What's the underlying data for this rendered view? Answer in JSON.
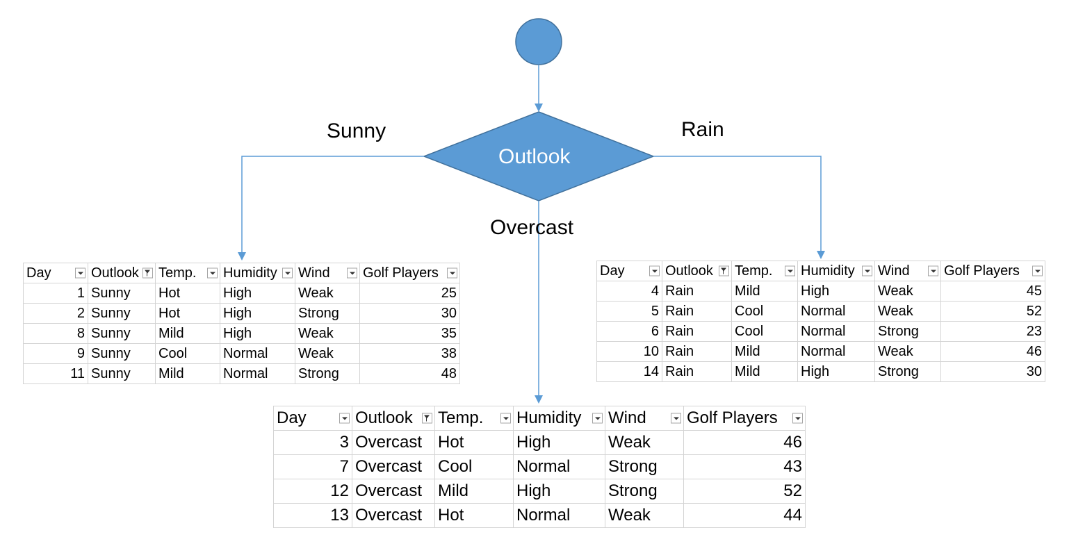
{
  "diagram": {
    "root_node": "",
    "decision_node": "Outlook",
    "branches": {
      "left": "Sunny",
      "middle": "Overcast",
      "right": "Rain"
    },
    "colors": {
      "node_fill": "#5b9bd5",
      "node_stroke": "#41719c",
      "arrow": "#5b9bd5",
      "node_text": "#ffffff"
    }
  },
  "tables": {
    "sunny": {
      "headers": [
        "Day",
        "Outlook",
        "Temp.",
        "Humidity",
        "Wind",
        "Golf Players"
      ],
      "filtered_column": "Outlook",
      "rows": [
        [
          "1",
          "Sunny",
          "Hot",
          "High",
          "Weak",
          "25"
        ],
        [
          "2",
          "Sunny",
          "Hot",
          "High",
          "Strong",
          "30"
        ],
        [
          "8",
          "Sunny",
          "Mild",
          "High",
          "Weak",
          "35"
        ],
        [
          "9",
          "Sunny",
          "Cool",
          "Normal",
          "Weak",
          "38"
        ],
        [
          "11",
          "Sunny",
          "Mild",
          "Normal",
          "Strong",
          "48"
        ]
      ]
    },
    "rain": {
      "headers": [
        "Day",
        "Outlook",
        "Temp.",
        "Humidity",
        "Wind",
        "Golf Players"
      ],
      "filtered_column": "Outlook",
      "rows": [
        [
          "4",
          "Rain",
          "Mild",
          "High",
          "Weak",
          "45"
        ],
        [
          "5",
          "Rain",
          "Cool",
          "Normal",
          "Weak",
          "52"
        ],
        [
          "6",
          "Rain",
          "Cool",
          "Normal",
          "Strong",
          "23"
        ],
        [
          "10",
          "Rain",
          "Mild",
          "Normal",
          "Weak",
          "46"
        ],
        [
          "14",
          "Rain",
          "Mild",
          "High",
          "Strong",
          "30"
        ]
      ]
    },
    "overcast": {
      "headers": [
        "Day",
        "Outlook",
        "Temp.",
        "Humidity",
        "Wind",
        "Golf Players"
      ],
      "filtered_column": "Outlook",
      "rows": [
        [
          "3",
          "Overcast",
          "Hot",
          "High",
          "Weak",
          "46"
        ],
        [
          "7",
          "Overcast",
          "Cool",
          "Normal",
          "Strong",
          "43"
        ],
        [
          "12",
          "Overcast",
          "Mild",
          "High",
          "Strong",
          "52"
        ],
        [
          "13",
          "Overcast",
          "Hot",
          "Normal",
          "Weak",
          "44"
        ]
      ]
    }
  }
}
